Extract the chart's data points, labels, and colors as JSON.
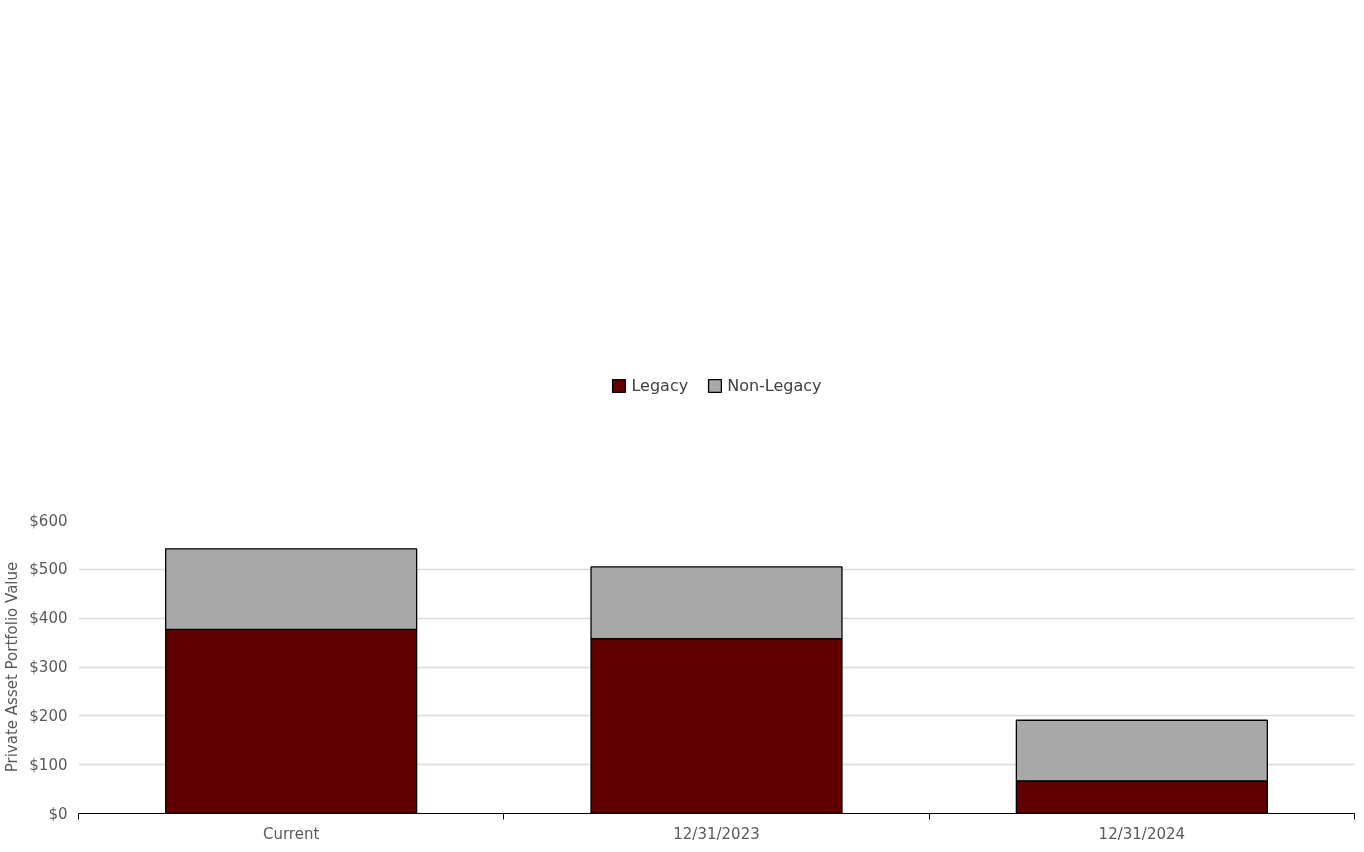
{
  "chart_data": {
    "type": "bar",
    "stacked": true,
    "categories": [
      "Current",
      "12/31/2023",
      "12/31/2024"
    ],
    "ylabel": "Private Asset Portfolio Value",
    "series": [
      {
        "name": "Legacy",
        "color": "#600000",
        "values": [
          377,
          358,
          67
        ]
      },
      {
        "name": "Non-Legacy",
        "color": "#a9a9a9",
        "values": [
          165,
          147,
          124
        ]
      }
    ],
    "ylim": [
      0,
      600
    ],
    "yticks": [
      {
        "value": 0,
        "label": "$0"
      },
      {
        "value": 100,
        "label": "$100"
      },
      {
        "value": 200,
        "label": "$200"
      },
      {
        "value": 300,
        "label": "$300"
      },
      {
        "value": 400,
        "label": "$400"
      },
      {
        "value": 500,
        "label": "$500"
      },
      {
        "value": 600,
        "label": "$600"
      }
    ],
    "grid": "y",
    "legend": "top"
  }
}
